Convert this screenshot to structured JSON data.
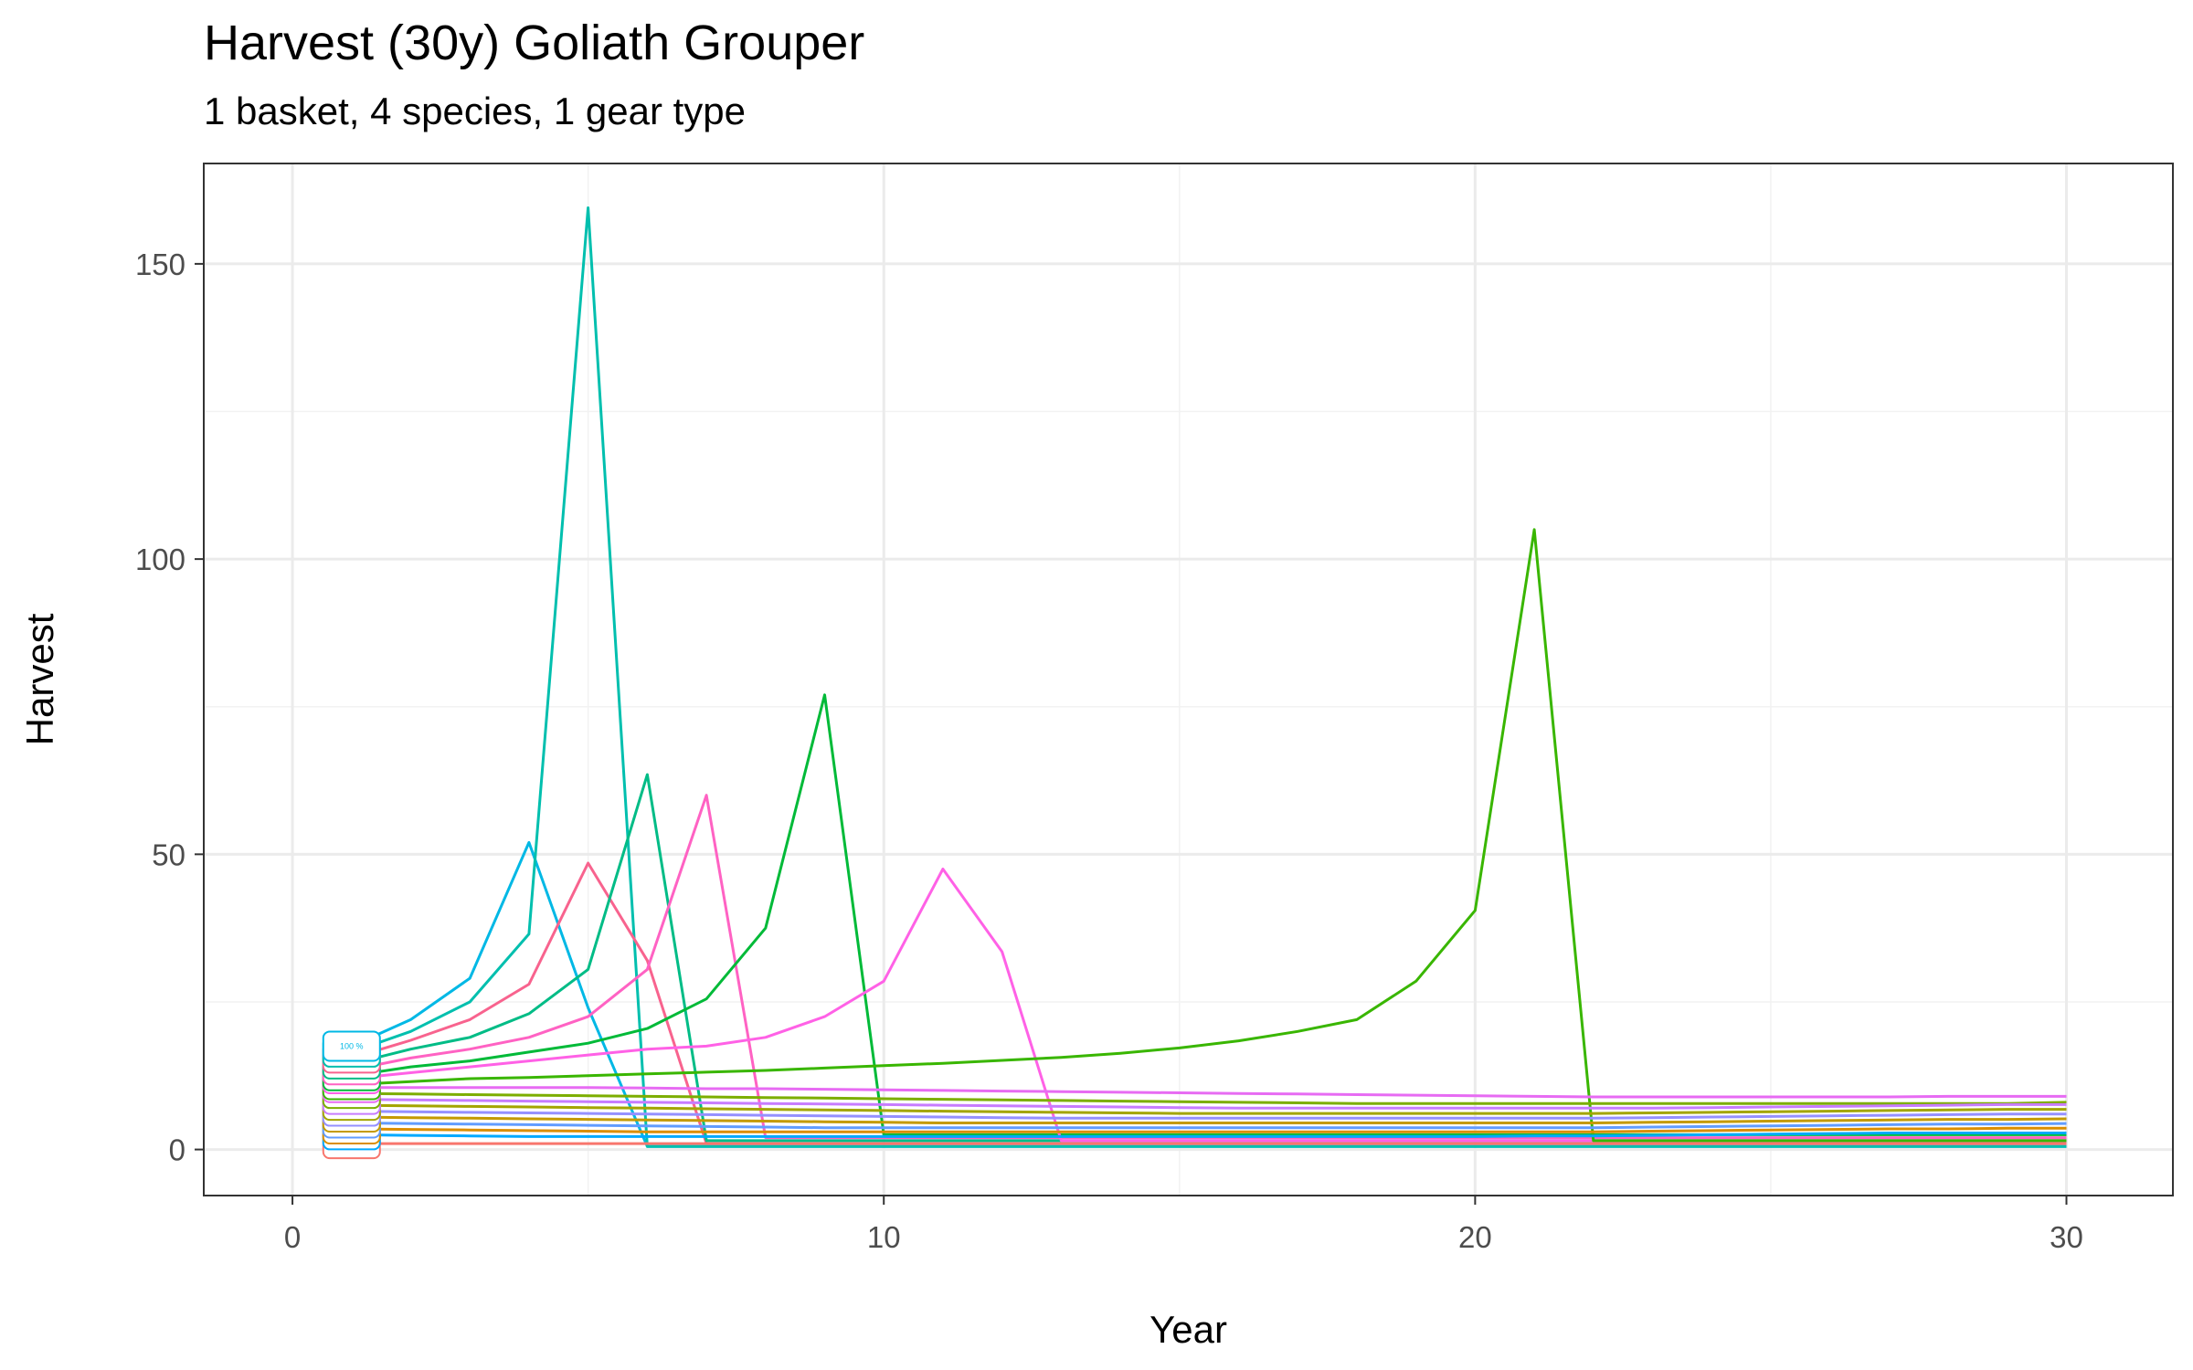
{
  "chart_data": {
    "type": "line",
    "title": "Harvest (30y) Goliath Grouper",
    "subtitle": "1 basket, 4 species, 1 gear type",
    "xlabel": "Year",
    "ylabel": "Harvest",
    "xlim": [
      -1.5,
      31.8
    ],
    "ylim": [
      -7.8,
      167
    ],
    "xticks": [
      0,
      10,
      20,
      30
    ],
    "yticks": [
      0,
      50,
      100,
      150
    ],
    "grid": true,
    "legend": "none",
    "start_label": "100 %",
    "series": [
      {
        "color": "#00B8E5",
        "values": [
          17.5,
          22,
          29,
          52,
          24,
          0.5,
          0.5,
          0.5,
          0.5,
          0.5,
          0.5,
          0.5,
          0.5,
          0.5,
          0.5,
          0.5,
          0.5,
          0.5,
          0.5,
          0.5,
          0.5,
          0.5,
          0.5,
          0.5,
          0.5,
          0.5,
          0.5,
          0.5,
          0.5,
          0.5
        ]
      },
      {
        "color": "#00BFAE",
        "values": [
          16.5,
          20,
          25,
          36.5,
          159.5,
          0.5,
          0.5,
          0.5,
          0.5,
          0.5,
          0.5,
          0.5,
          0.5,
          0.5,
          0.5,
          0.5,
          0.5,
          0.5,
          0.5,
          0.5,
          0.5,
          0.5,
          0.5,
          0.5,
          0.5,
          0.5,
          0.5,
          0.5,
          0.5,
          0.5
        ]
      },
      {
        "color": "#F8638E",
        "values": [
          15.5,
          18.5,
          22,
          28,
          48.5,
          32,
          1,
          1,
          1,
          1,
          1,
          1,
          1,
          1,
          1,
          1,
          1,
          1,
          1,
          1,
          1,
          1,
          1,
          1,
          1,
          1,
          1,
          1,
          1,
          1
        ]
      },
      {
        "color": "#00BC86",
        "values": [
          14.5,
          17,
          19,
          23,
          30.5,
          63.5,
          1.5,
          1.5,
          1.5,
          1.5,
          1.5,
          1.5,
          1.5,
          1.5,
          1.5,
          1.5,
          1.5,
          1.5,
          1.5,
          1.5,
          1.5,
          1.5,
          1.5,
          1.5,
          1.5,
          1.5,
          1.5,
          1.5,
          1.5,
          1.5
        ]
      },
      {
        "color": "#FF62C3",
        "values": [
          13.5,
          15.5,
          17,
          19,
          22.5,
          30.5,
          60,
          2,
          2,
          2,
          2,
          2,
          2,
          2,
          2,
          2,
          2,
          2,
          2,
          2,
          2,
          2,
          2,
          2,
          2,
          2,
          2,
          2,
          2,
          2
        ]
      },
      {
        "color": "#00BA38",
        "values": [
          12.5,
          14,
          15,
          16.5,
          18,
          20.5,
          25.5,
          37.5,
          77,
          2.5,
          2.5,
          2.5,
          2.5,
          2.5,
          2.5,
          2.5,
          2.5,
          2.5,
          2.5,
          2.5,
          2.5,
          2.5,
          2.5,
          2.5,
          2.5,
          2.5,
          2.5,
          2.5,
          2.5,
          2.5
        ]
      },
      {
        "color": "#FF61E6",
        "values": [
          12,
          13,
          14,
          15,
          16,
          17,
          17.5,
          19,
          22.5,
          28.5,
          47.5,
          33.5,
          1.5,
          1.5,
          1.5,
          1.5,
          1.5,
          1.5,
          1.5,
          1.5,
          1.5,
          1.5,
          1.5,
          1.5,
          1.5,
          1.5,
          1.5,
          1.5,
          1.5,
          1.5
        ]
      },
      {
        "color": "#39B600",
        "values": [
          11,
          11.5,
          12,
          12.2,
          12.5,
          12.8,
          13.1,
          13.4,
          13.8,
          14.2,
          14.6,
          15.1,
          15.6,
          16.3,
          17.2,
          18.4,
          20,
          22,
          28.5,
          40.5,
          105,
          1.5,
          1.5,
          1.5,
          1.5,
          1.5,
          1.5,
          1.5,
          1.5,
          1.5
        ]
      },
      {
        "color": "#E76BF3",
        "values": [
          10.5,
          10.5,
          10.5,
          10.5,
          10.5,
          10.4,
          10.3,
          10.3,
          10.2,
          10.1,
          10,
          9.9,
          9.8,
          9.7,
          9.6,
          9.5,
          9.4,
          9.3,
          9.2,
          9.1,
          9,
          8.9,
          8.9,
          8.9,
          8.9,
          8.9,
          8.9,
          9,
          9,
          9
        ]
      },
      {
        "color": "#7CAE00",
        "values": [
          9.5,
          9.4,
          9.3,
          9.2,
          9.1,
          9,
          8.9,
          8.8,
          8.7,
          8.6,
          8.5,
          8.4,
          8.3,
          8.2,
          8.1,
          8,
          7.9,
          7.8,
          7.8,
          7.8,
          7.8,
          7.8,
          7.8,
          7.8,
          7.8,
          7.8,
          7.8,
          7.8,
          7.8,
          8
        ]
      },
      {
        "color": "#C77CFF",
        "values": [
          8.5,
          8.4,
          8.3,
          8.2,
          8.1,
          8,
          7.9,
          7.8,
          7.7,
          7.6,
          7.5,
          7.4,
          7.3,
          7.2,
          7.1,
          7,
          7,
          7,
          7,
          7,
          7,
          7,
          7,
          7.1,
          7.2,
          7.3,
          7.4,
          7.5,
          7.6,
          7.6
        ]
      },
      {
        "color": "#A3A500",
        "values": [
          7.5,
          7.4,
          7.3,
          7.2,
          7.1,
          7,
          6.9,
          6.8,
          6.7,
          6.6,
          6.5,
          6.4,
          6.3,
          6.2,
          6.1,
          6.1,
          6.1,
          6.1,
          6.1,
          6.1,
          6.1,
          6.1,
          6.2,
          6.3,
          6.4,
          6.5,
          6.6,
          6.7,
          6.8,
          6.8
        ]
      },
      {
        "color": "#9590FF",
        "values": [
          6.5,
          6.4,
          6.3,
          6.2,
          6.1,
          6,
          5.9,
          5.8,
          5.7,
          5.6,
          5.5,
          5.4,
          5.3,
          5.3,
          5.3,
          5.3,
          5.3,
          5.3,
          5.3,
          5.3,
          5.3,
          5.3,
          5.4,
          5.5,
          5.6,
          5.7,
          5.8,
          5.9,
          6,
          6
        ]
      },
      {
        "color": "#C49A00",
        "values": [
          5.5,
          5.4,
          5.3,
          5.2,
          5.1,
          5,
          4.9,
          4.8,
          4.7,
          4.6,
          4.5,
          4.5,
          4.5,
          4.5,
          4.5,
          4.5,
          4.5,
          4.5,
          4.5,
          4.5,
          4.5,
          4.5,
          4.6,
          4.7,
          4.8,
          4.9,
          5,
          5.1,
          5.1,
          5.2
        ]
      },
      {
        "color": "#619CFF",
        "values": [
          4.5,
          4.4,
          4.3,
          4.2,
          4.1,
          4,
          3.9,
          3.8,
          3.7,
          3.7,
          3.7,
          3.7,
          3.7,
          3.7,
          3.7,
          3.7,
          3.7,
          3.7,
          3.7,
          3.7,
          3.7,
          3.7,
          3.8,
          3.9,
          4,
          4.1,
          4.2,
          4.3,
          4.3,
          4.4
        ]
      },
      {
        "color": "#DB8E00",
        "values": [
          3.5,
          3.4,
          3.3,
          3.2,
          3.1,
          3,
          3,
          3,
          3,
          3,
          3,
          3,
          3,
          3,
          3,
          3,
          3,
          3,
          3,
          3,
          3,
          3,
          3.1,
          3.2,
          3.3,
          3.4,
          3.5,
          3.5,
          3.6,
          3.6
        ]
      },
      {
        "color": "#00A9FF",
        "values": [
          2.5,
          2.4,
          2.3,
          2.2,
          2.2,
          2.2,
          2.2,
          2.2,
          2.2,
          2.2,
          2.2,
          2.2,
          2.2,
          2.2,
          2.2,
          2.2,
          2.2,
          2.2,
          2.2,
          2.2,
          2.3,
          2.3,
          2.4,
          2.5,
          2.6,
          2.7,
          2.8,
          2.8,
          2.8,
          2.8
        ]
      },
      {
        "color": "#F8766D",
        "values": [
          1,
          1,
          1,
          1,
          1,
          1,
          1,
          1,
          1,
          1,
          1,
          1,
          1,
          1,
          1,
          1,
          1,
          1,
          1,
          1,
          1,
          1,
          1,
          1,
          1,
          1,
          1,
          1,
          1,
          1
        ]
      }
    ]
  }
}
